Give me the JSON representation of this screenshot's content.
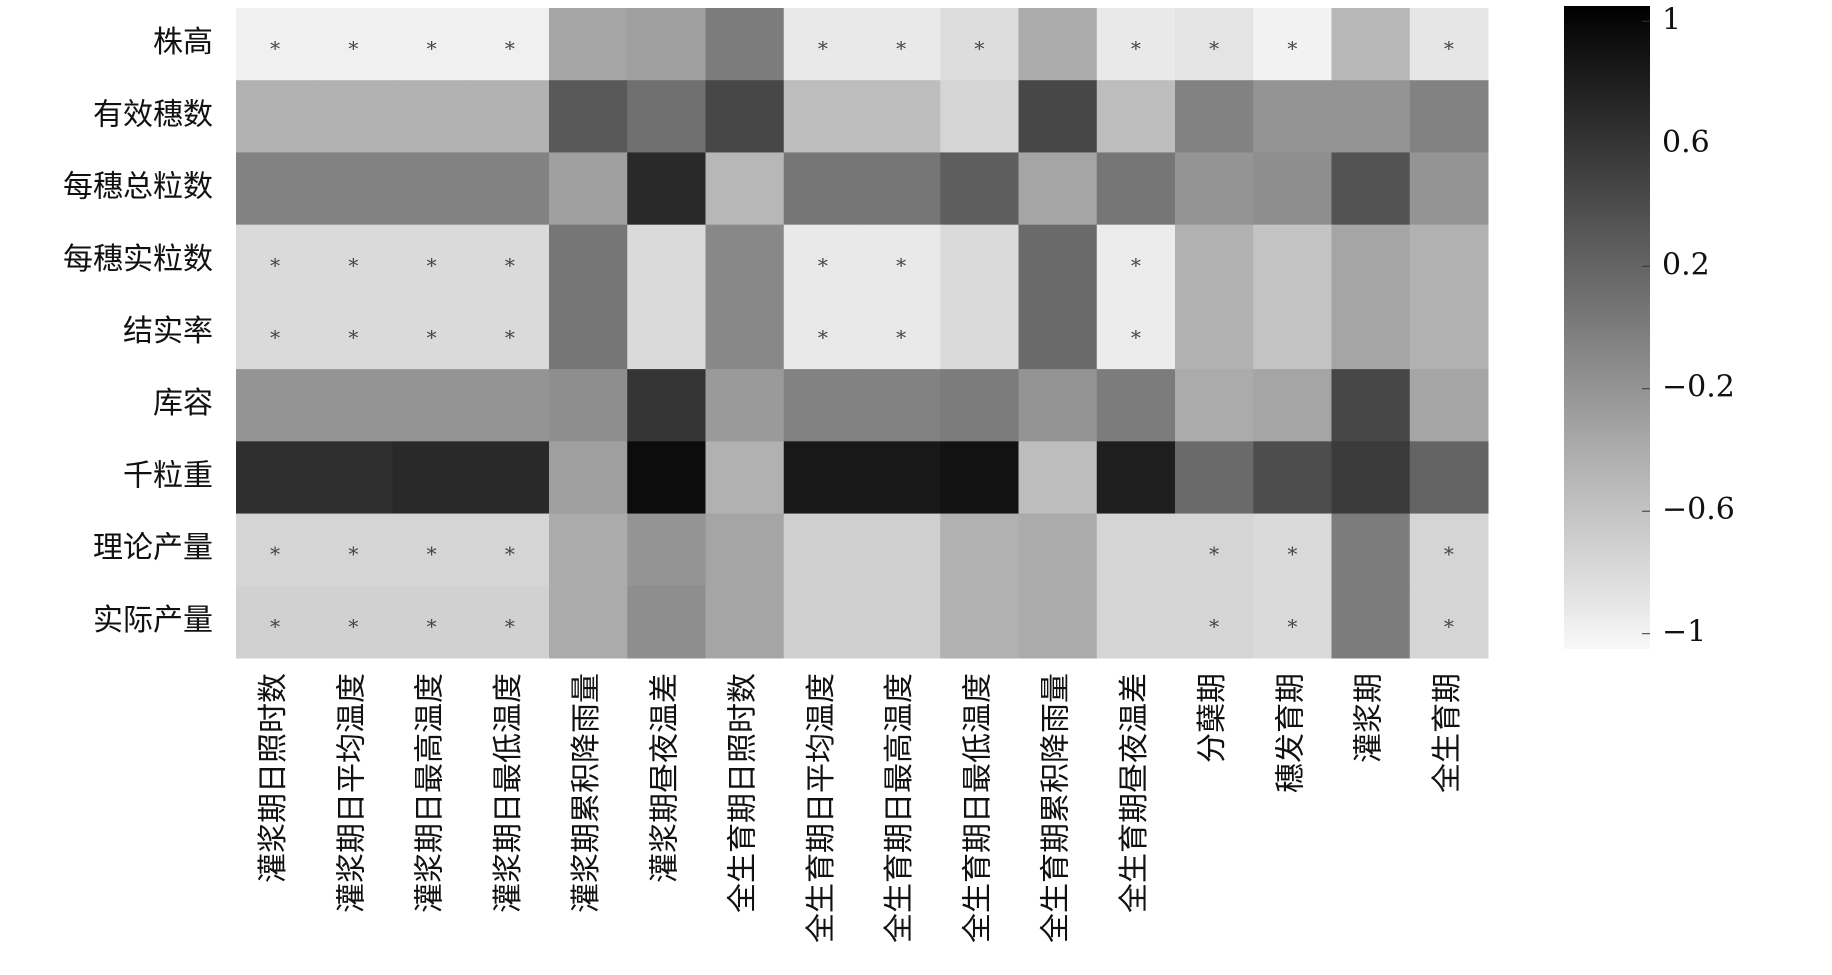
{
  "chart_data": {
    "type": "heatmap",
    "rows": [
      "株高",
      "有效穗数",
      "每穗总粒数",
      "每穗实粒数",
      "结实率",
      "库容",
      "千粒重",
      "理论产量",
      "实际产量"
    ],
    "columns": [
      "灌浆期日照时数",
      "灌浆期日平均温度",
      "灌浆期日最高温度",
      "灌浆期日最低温度",
      "灌浆期累积降雨量",
      "灌浆期昼夜温差",
      "全生育期日照时数",
      "全生育期日平均温度",
      "全生育期日最高温度",
      "全生育期日最低温度",
      "全生育期累积降雨量",
      "全生育期昼夜温差",
      "分蘖期",
      "穗发育期",
      "灌浆期",
      "全生育期"
    ],
    "values": [
      [
        -0.98,
        -0.98,
        -0.98,
        -0.98,
        -0.35,
        -0.3,
        0.0,
        -0.92,
        -0.92,
        -0.82,
        -0.4,
        -0.92,
        -0.88,
        -1.0,
        -0.5,
        -0.9
      ],
      [
        -0.45,
        -0.45,
        -0.45,
        -0.45,
        0.3,
        0.1,
        0.45,
        -0.55,
        -0.55,
        -0.75,
        0.45,
        -0.55,
        -0.05,
        -0.2,
        -0.2,
        -0.05
      ],
      [
        -0.05,
        -0.05,
        -0.05,
        -0.05,
        -0.3,
        0.7,
        -0.5,
        0.05,
        0.05,
        0.25,
        -0.35,
        0.05,
        -0.2,
        -0.15,
        0.35,
        -0.2
      ],
      [
        -0.8,
        -0.8,
        -0.8,
        -0.8,
        0.05,
        -0.8,
        -0.1,
        -0.92,
        -0.92,
        -0.8,
        0.15,
        -0.95,
        -0.45,
        -0.6,
        -0.35,
        -0.45
      ],
      [
        -0.8,
        -0.8,
        -0.8,
        -0.8,
        0.05,
        -0.8,
        -0.1,
        -0.92,
        -0.92,
        -0.8,
        0.15,
        -0.95,
        -0.45,
        -0.6,
        -0.35,
        -0.45
      ],
      [
        -0.2,
        -0.2,
        -0.2,
        -0.2,
        -0.15,
        0.6,
        -0.25,
        -0.05,
        -0.05,
        0.0,
        -0.2,
        0.0,
        -0.4,
        -0.35,
        0.45,
        -0.35
      ],
      [
        0.65,
        0.65,
        0.7,
        0.7,
        -0.3,
        0.95,
        -0.45,
        0.85,
        0.85,
        0.9,
        -0.55,
        0.8,
        0.15,
        0.4,
        0.55,
        0.2
      ],
      [
        -0.75,
        -0.75,
        -0.75,
        -0.75,
        -0.4,
        -0.2,
        -0.35,
        -0.7,
        -0.7,
        -0.45,
        -0.4,
        -0.75,
        -0.75,
        -0.8,
        0.0,
        -0.75
      ],
      [
        -0.72,
        -0.72,
        -0.72,
        -0.72,
        -0.4,
        -0.15,
        -0.35,
        -0.7,
        -0.7,
        -0.45,
        -0.4,
        -0.75,
        -0.75,
        -0.8,
        0.0,
        -0.75
      ]
    ],
    "significance": [
      [
        "*",
        "*",
        "*",
        "*",
        null,
        null,
        null,
        "*",
        "*",
        "*",
        null,
        "*",
        "*",
        "*",
        null,
        "*"
      ],
      [
        null,
        null,
        null,
        null,
        null,
        null,
        null,
        null,
        null,
        null,
        null,
        null,
        null,
        null,
        null,
        null
      ],
      [
        null,
        null,
        null,
        null,
        null,
        null,
        null,
        null,
        null,
        null,
        null,
        null,
        null,
        null,
        null,
        null
      ],
      [
        "*",
        "*",
        "*",
        "*",
        null,
        null,
        null,
        "*",
        "*",
        null,
        null,
        "*",
        null,
        null,
        null,
        null
      ],
      [
        "*",
        "*",
        "*",
        "*",
        null,
        null,
        null,
        "*",
        "*",
        null,
        null,
        "*",
        null,
        null,
        null,
        null
      ],
      [
        null,
        null,
        null,
        null,
        null,
        null,
        null,
        null,
        null,
        null,
        null,
        null,
        null,
        null,
        null,
        null
      ],
      [
        null,
        null,
        null,
        null,
        null,
        null,
        null,
        null,
        null,
        null,
        null,
        null,
        null,
        null,
        null,
        null
      ],
      [
        "*",
        "*",
        "*",
        "*",
        null,
        null,
        null,
        null,
        null,
        null,
        null,
        null,
        "*",
        "*",
        null,
        "*"
      ],
      [
        "*",
        "*",
        "*",
        "*",
        null,
        null,
        null,
        null,
        null,
        null,
        null,
        null,
        "*",
        "*",
        null,
        "*"
      ]
    ],
    "zlim": [
      -1.05,
      1.05
    ],
    "zticks": [
      1,
      0.6,
      0.2,
      {
        "value": -0.2,
        "label": "−0.2"
      },
      {
        "value": -0.6,
        "label": "−0.6"
      },
      {
        "value": -1,
        "label": "−1"
      }
    ],
    "colormap": [
      "#f8f8f8",
      "#000000"
    ]
  }
}
